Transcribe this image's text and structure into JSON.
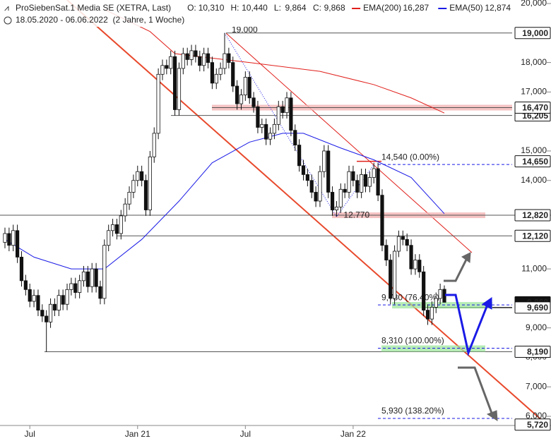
{
  "chart_data": {
    "type": "candlestick",
    "title": "ProSiebenSat.1 Media SE (XETRA, Last)",
    "subtitle": "18.05.2020 - 06.06.2022  (2 Jahre, 1 Woche)",
    "quote": [
      {
        "label": "O:",
        "value": "10,310"
      },
      {
        "label": "H:",
        "value": "10,440"
      },
      {
        "label": "L:",
        "value": "9,864"
      },
      {
        "label": "C:",
        "value": "9,868"
      }
    ],
    "categories": [
      null,
      null,
      null,
      null,
      null,
      null,
      "Jul",
      null,
      null,
      null,
      null,
      null,
      null,
      null,
      null,
      null,
      null,
      null,
      null,
      null,
      null,
      null,
      null,
      null,
      null,
      null,
      null,
      null,
      null,
      null,
      null,
      null,
      "Jan 21",
      null,
      null,
      null,
      null,
      null,
      null,
      null,
      null,
      null,
      null,
      null,
      null,
      null,
      null,
      null,
      null,
      null,
      null,
      null,
      null,
      null,
      null,
      null,
      null,
      null,
      "Jul",
      null,
      null,
      null,
      null,
      null,
      null,
      null,
      null,
      null,
      null,
      null,
      null,
      null,
      null,
      null,
      null,
      null,
      null,
      null,
      null,
      null,
      null,
      null,
      null,
      null,
      "Jan 22",
      null,
      null,
      null,
      null,
      null,
      null,
      null,
      null,
      null,
      null,
      null,
      null,
      null,
      null,
      null,
      null,
      null,
      null,
      null,
      null,
      null,
      null
    ],
    "open": [
      11.9,
      12.2,
      11.8,
      12.3,
      11.4,
      10.6,
      10.3,
      9.9,
      10.1,
      9.6,
      9.4,
      9.2,
      9.8,
      9.6,
      10.1,
      9.8,
      10.3,
      10.5,
      10.2,
      10.6,
      10.9,
      10.4,
      11.0,
      10.4,
      10.0,
      11.8,
      12.3,
      12.5,
      12.2,
      12.8,
      13.2,
      13.6,
      14.0,
      14.3,
      14.0,
      13.0,
      14.8,
      15.6,
      17.6,
      17.9,
      17.8,
      18.2,
      16.4,
      17.8,
      18.3,
      18.1,
      18.4,
      18.2,
      17.9,
      18.3,
      18.0,
      17.3,
      17.6,
      17.8,
      18.3,
      18.0,
      17.2,
      16.6,
      16.9,
      17.5,
      16.8,
      16.5,
      15.8,
      15.9,
      15.4,
      15.6,
      15.9,
      16.5,
      16.3,
      16.8,
      15.7,
      15.2,
      14.5,
      14.2,
      14.0,
      13.6,
      13.3,
      14.3,
      15.0,
      13.6,
      13.0,
      13.1,
      13.7,
      13.6,
      14.3,
      14.0,
      13.6,
      14.2,
      13.8,
      14.1,
      14.4,
      13.5,
      11.8,
      11.3,
      10.0,
      11.6,
      12.1,
      12.0,
      11.8,
      11.0,
      11.3,
      10.9,
      9.6,
      9.3,
      9.7,
      10.0,
      10.31
    ],
    "high": [
      12.4,
      12.4,
      12.5,
      12.5,
      11.6,
      10.8,
      10.5,
      10.3,
      10.3,
      9.8,
      9.6,
      10.0,
      10.0,
      10.3,
      10.3,
      10.5,
      10.7,
      10.7,
      10.8,
      11.1,
      11.1,
      11.2,
      11.2,
      10.6,
      12.0,
      12.5,
      12.7,
      12.7,
      13.0,
      13.4,
      13.8,
      14.2,
      14.5,
      14.5,
      14.2,
      15.0,
      15.8,
      17.8,
      18.1,
      18.1,
      18.4,
      18.4,
      18.0,
      18.5,
      18.5,
      18.6,
      18.6,
      18.4,
      18.5,
      18.5,
      18.2,
      17.8,
      18.0,
      19.0,
      18.5,
      18.2,
      17.4,
      17.1,
      17.7,
      17.7,
      17.0,
      16.7,
      16.1,
      16.1,
      15.8,
      16.1,
      16.7,
      16.7,
      17.0,
      17.0,
      15.9,
      15.4,
      14.7,
      14.4,
      14.2,
      13.8,
      14.5,
      15.2,
      15.2,
      13.8,
      13.3,
      13.9,
      13.9,
      14.5,
      14.5,
      14.2,
      14.4,
      14.4,
      14.3,
      14.6,
      14.6,
      13.7,
      12.0,
      11.5,
      11.8,
      12.3,
      12.3,
      12.2,
      12.0,
      11.5,
      11.5,
      11.1,
      9.8,
      9.9,
      10.2,
      10.5,
      10.44
    ],
    "low": [
      11.7,
      11.6,
      11.6,
      11.2,
      10.4,
      10.1,
      9.7,
      9.7,
      9.4,
      9.2,
      8.19,
      9.0,
      9.4,
      9.4,
      9.6,
      9.6,
      10.1,
      10.0,
      10.0,
      10.4,
      10.2,
      10.2,
      10.2,
      9.8,
      9.8,
      11.6,
      12.1,
      12.0,
      12.0,
      12.6,
      13.0,
      13.4,
      13.8,
      13.8,
      12.8,
      12.8,
      14.6,
      15.4,
      17.4,
      17.6,
      17.6,
      16.2,
      16.2,
      17.6,
      17.9,
      17.9,
      18.0,
      17.7,
      17.7,
      17.8,
      17.1,
      17.1,
      17.4,
      17.6,
      17.8,
      17.0,
      16.4,
      16.4,
      16.7,
      16.6,
      16.3,
      15.6,
      15.6,
      15.2,
      15.2,
      15.4,
      15.7,
      16.1,
      16.1,
      15.5,
      15.0,
      14.3,
      14.0,
      13.8,
      13.4,
      13.1,
      13.1,
      14.1,
      13.4,
      12.8,
      12.77,
      12.9,
      13.4,
      13.4,
      13.8,
      13.4,
      13.4,
      13.6,
      13.6,
      13.9,
      13.3,
      11.6,
      11.1,
      9.8,
      9.8,
      11.4,
      11.8,
      11.6,
      10.8,
      10.8,
      10.7,
      9.4,
      9.1,
      9.1,
      9.5,
      9.8,
      9.864
    ],
    "close": [
      12.2,
      11.8,
      12.3,
      11.4,
      10.6,
      10.3,
      9.9,
      10.1,
      9.6,
      9.4,
      9.2,
      9.8,
      9.6,
      10.1,
      9.8,
      10.3,
      10.5,
      10.2,
      10.6,
      10.9,
      10.4,
      11.0,
      10.4,
      10.0,
      11.8,
      12.3,
      12.5,
      12.2,
      12.8,
      13.2,
      13.6,
      14.0,
      14.3,
      14.0,
      13.0,
      14.8,
      15.6,
      17.6,
      17.9,
      17.8,
      18.2,
      16.4,
      17.8,
      18.3,
      18.1,
      18.4,
      18.2,
      17.9,
      18.3,
      18.0,
      17.3,
      17.6,
      17.8,
      18.3,
      18.0,
      17.2,
      16.6,
      16.9,
      17.5,
      16.8,
      16.5,
      15.8,
      15.9,
      15.4,
      15.6,
      15.9,
      16.5,
      16.3,
      16.8,
      15.7,
      15.2,
      14.5,
      14.2,
      14.0,
      13.6,
      13.3,
      14.3,
      15.0,
      13.6,
      13.0,
      13.1,
      13.7,
      13.6,
      14.3,
      14.0,
      13.6,
      14.2,
      13.8,
      14.1,
      14.4,
      13.5,
      11.8,
      11.3,
      10.0,
      11.6,
      12.1,
      12.0,
      11.8,
      11.0,
      11.3,
      10.9,
      9.6,
      9.3,
      9.7,
      10.0,
      10.3,
      9.868
    ],
    "series": [
      {
        "name": "EMA(200)",
        "color": "#e0201b",
        "last_label": "16,287",
        "x": [
          24,
          35,
          41,
          50,
          59,
          76,
          89,
          98,
          106
        ],
        "values": [
          19.8,
          19.05,
          18.3,
          18.15,
          18.0,
          17.7,
          17.25,
          16.8,
          16.287
        ]
      },
      {
        "name": "EMA(50)",
        "color": "#1a1ae6",
        "last_label": "12,874",
        "x": [
          0,
          7,
          16,
          24,
          33,
          42,
          50,
          59,
          67,
          72,
          81,
          89,
          98,
          106
        ],
        "values": [
          12.0,
          11.4,
          11.0,
          11.0,
          12.0,
          13.3,
          14.6,
          15.3,
          15.6,
          15.6,
          15.1,
          14.7,
          14.1,
          12.874
        ]
      }
    ],
    "ylim": [
      5.69,
      20.12
    ],
    "yticks": [
      {
        "value": 20,
        "label": "20,000"
      },
      {
        "value": 18,
        "label": "18,000"
      },
      {
        "value": 17,
        "label": "17,000"
      },
      {
        "value": 15,
        "label": "15,000"
      },
      {
        "value": 14,
        "label": "14,000"
      },
      {
        "value": 11,
        "label": "11,000"
      },
      {
        "value": 9,
        "label": "9,000"
      },
      {
        "value": 8,
        "label": "8,000"
      },
      {
        "value": 7,
        "label": "7,000"
      },
      {
        "value": 6,
        "label": "6,000"
      }
    ],
    "levels": [
      {
        "value": 19,
        "label": "19,000"
      },
      {
        "value": 16.205,
        "label": "16,205"
      },
      {
        "value": 16.47,
        "label": "16,470",
        "zone": true
      },
      {
        "value": 14.65,
        "label": "14,650"
      },
      {
        "value": 12.82,
        "label": "12,820",
        "zone": true
      },
      {
        "value": 12.12,
        "label": "12,120"
      },
      {
        "value": 9.69,
        "label": "9,690"
      },
      {
        "value": 8.19,
        "label": "8,190"
      },
      {
        "value": 5.72,
        "label": "5,720"
      }
    ],
    "last_price": {
      "value": 9.868,
      "label": "9,868"
    },
    "pivots": [
      {
        "index": 53,
        "value": 19,
        "label": "19.000"
      },
      {
        "index": 80,
        "value": 12.77,
        "label": "12.770"
      }
    ],
    "fib": [
      {
        "value": 14.54,
        "label": "14,540 (0.00%)"
      },
      {
        "value": 9.78,
        "label": "9,780 (76.40%)",
        "zone": true
      },
      {
        "value": 8.31,
        "label": "8,310 (100.00%)",
        "zone": true
      },
      {
        "value": 5.93,
        "label": "5,930 (138.20%)"
      }
    ]
  }
}
